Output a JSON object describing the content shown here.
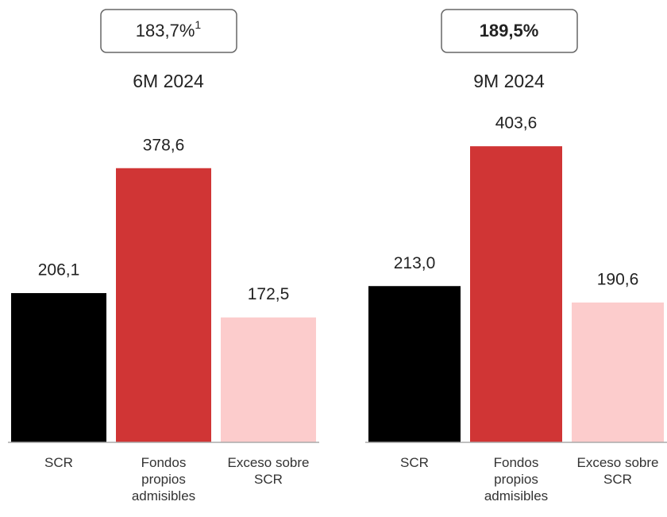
{
  "chart_data": [
    {
      "type": "bar",
      "title": "183,7%",
      "title_superscript": "1",
      "title_bold": false,
      "subtitle": "6M 2024",
      "categories": [
        "SCR",
        "Fondos propios admisibles",
        "Exceso sobre SCR"
      ],
      "values": [
        206.1,
        378.6,
        172.5
      ],
      "value_labels": [
        "206,1",
        "378,6",
        "172,5"
      ],
      "colors": [
        "#000000",
        "#d03535",
        "#fccccc"
      ],
      "ylim": [
        0,
        420
      ]
    },
    {
      "type": "bar",
      "title": "189,5%",
      "title_bold": true,
      "subtitle": "9M 2024",
      "categories": [
        "SCR",
        "Fondos propios admisibles",
        "Exceso sobre SCR"
      ],
      "values": [
        213.0,
        403.6,
        190.6
      ],
      "value_labels": [
        "213,0",
        "403,6",
        "190,6"
      ],
      "colors": [
        "#000000",
        "#d03535",
        "#fccccc"
      ],
      "ylim": [
        0,
        420
      ]
    }
  ]
}
